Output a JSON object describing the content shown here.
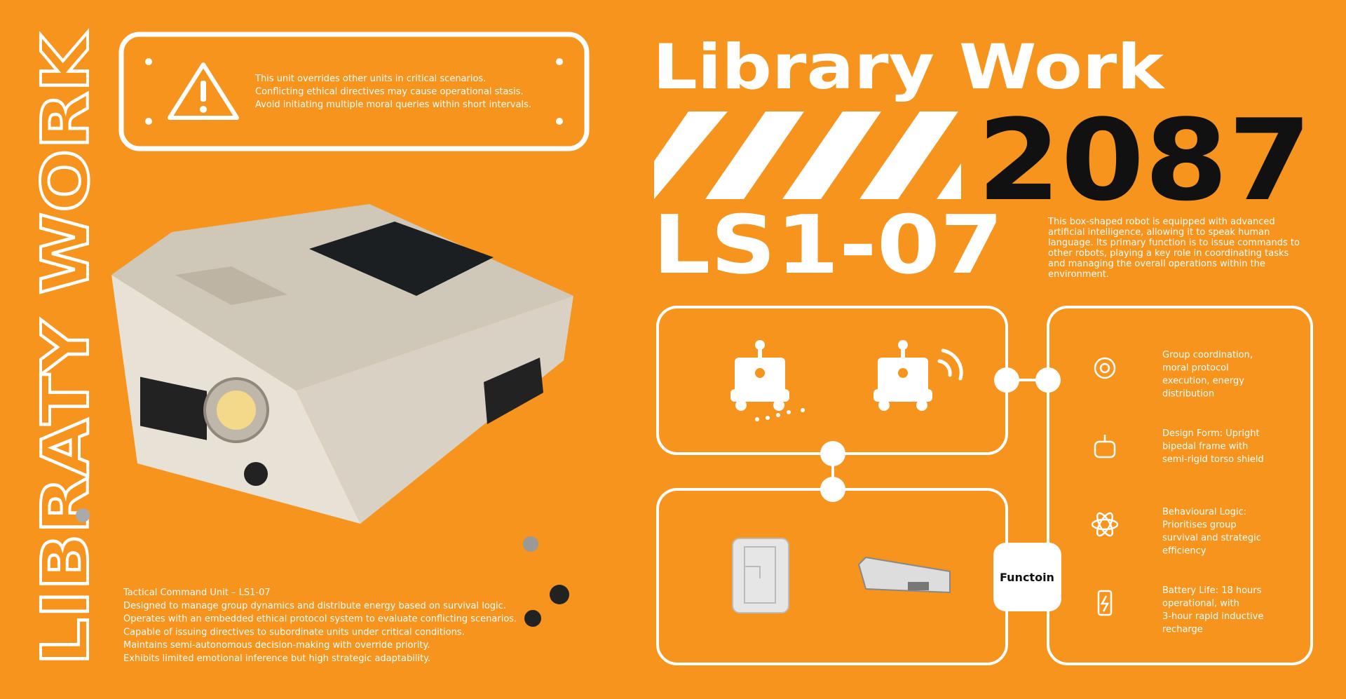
{
  "sidebar_title": "LIBRATY WORK",
  "warning": {
    "lines": [
      "This unit overrides other units in critical scenarios.",
      "Conflicting ethical directives may cause operational stasis.",
      "Avoid initiating multiple moral queries within short intervals."
    ]
  },
  "title": "Library Work",
  "year": "2087",
  "model": "LS1-07",
  "description": [
    "This box-shaped robot is equipped with advanced",
    "artificial intelligence, allowing it to speak human",
    "language. Its primary function is to issue commands to",
    "other robots, playing a key role in coordinating tasks",
    "and managing the overall operations within the",
    "environment."
  ],
  "function_label": "Functoin",
  "features": [
    {
      "lines": [
        "Group coordination,",
        "moral protocol",
        "execution, energy",
        "distribution"
      ]
    },
    {
      "lines": [
        "Design Form: Upright",
        "bipedal frame with",
        "semi-rigid torso shield"
      ]
    },
    {
      "lines": [
        "Behavioural Logic:",
        "Prioritises group",
        "survival and strategic",
        "efficiency"
      ]
    },
    {
      "lines": [
        "Battery Life: 18 hours",
        "operational, with",
        "3-hour rapid inductive",
        "recharge"
      ]
    }
  ],
  "specs": [
    "Tactical Command Unit – LS1-07",
    "Designed to manage group dynamics and distribute energy based on survival logic.",
    "Operates with an embedded ethical protocol system to evaluate conflicting scenarios.",
    "Capable of issuing directives to subordinate units under critical conditions.",
    "Maintains semi-autonomous decision-making with override priority.",
    "Exhibits limited emotional inference but high strategic adaptability."
  ]
}
